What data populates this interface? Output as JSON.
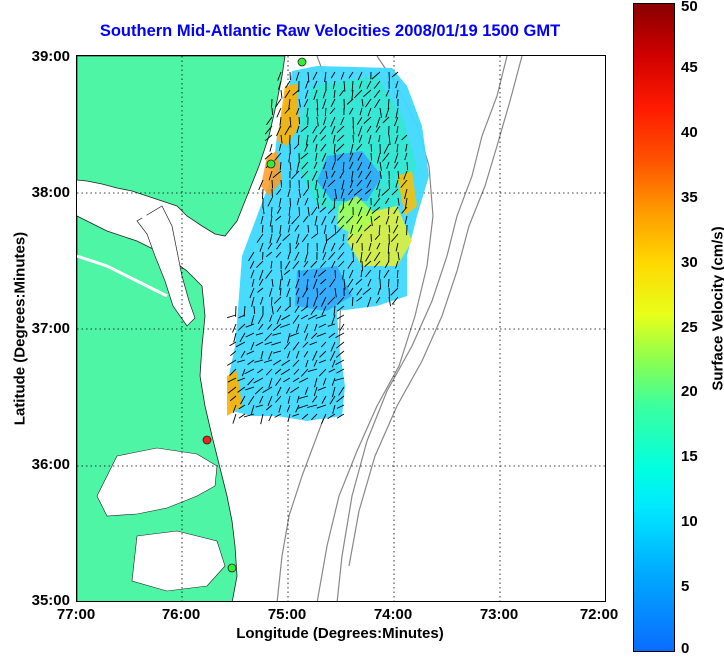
{
  "title": "Southern Mid-Atlantic Raw Velocities 2008/01/19 1500 GMT",
  "map": {
    "type": "ocean surface current velocity map",
    "lon_range": [
      "77:00",
      "72:00"
    ],
    "lat_range": [
      "35:00",
      "39:00"
    ],
    "x_ticks": [
      "77:00",
      "76:00",
      "75:00",
      "74:00",
      "73:00",
      "72:00"
    ],
    "y_ticks": [
      "39:00",
      "38:00",
      "37:00",
      "36:00",
      "35:00"
    ],
    "xlabel": "Longitude (Degrees:Minutes)",
    "ylabel": "Latitude (Degrees:Minutes)",
    "gridlines": "dotted",
    "land_color": "#4df5a5",
    "water_color": "#ffffff",
    "bathymetry_color": "#888888",
    "station_markers": [
      {
        "color": "#33ee33"
      },
      {
        "color": "#33ee33"
      },
      {
        "color": "#ee2222"
      },
      {
        "color": "#33ee33"
      }
    ]
  },
  "colorbar": {
    "label": "Surface Velocity (cm/s)",
    "ticks": [
      "0",
      "5",
      "10",
      "15",
      "20",
      "25",
      "30",
      "35",
      "40",
      "45",
      "50"
    ],
    "range": [
      0,
      50
    ],
    "colormap": "jet"
  }
}
